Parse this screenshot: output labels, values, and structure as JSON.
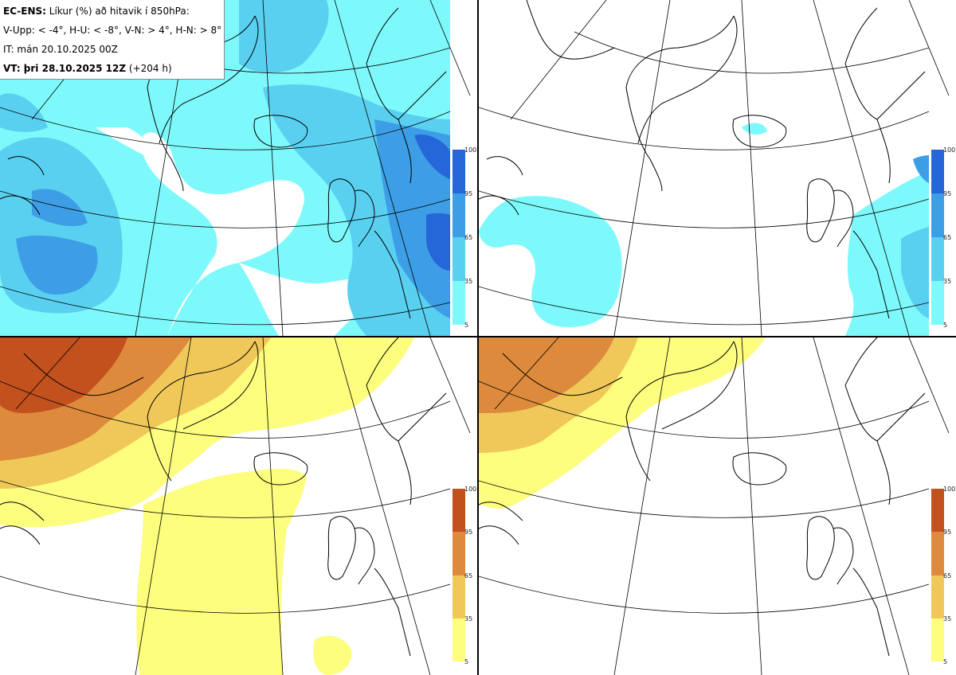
{
  "info": {
    "line1_bold": "EC-ENS:",
    "line1_rest": "Líkur (%) að hitavik í 850hPa:",
    "line2": "V-Upp: < -4°, H-U: < -8°, V-N: > 4°, H-N: > 8°",
    "line3": "IT: mán 20.10.2025 00Z",
    "line4_bold": "VT: þri 28.10.2025 12Z",
    "line4_rest": "(+204 h)"
  },
  "colorbar_labels": [
    "100",
    "95",
    "65",
    "35",
    "5"
  ],
  "palettes": {
    "cold": [
      "#7ef9fb",
      "#5ad0f0",
      "#3d9ee6",
      "#2566d8"
    ],
    "warm": [
      "#fdfd7e",
      "#f0c85a",
      "#dd8a3c",
      "#c2511e"
    ]
  },
  "panels": [
    {
      "id": "top-left",
      "label": "V-Upp",
      "scheme": "cold"
    },
    {
      "id": "top-right",
      "label": "H-U",
      "scheme": "cold"
    },
    {
      "id": "bottom-left",
      "label": "V-N",
      "scheme": "warm"
    },
    {
      "id": "bottom-right",
      "label": "H-N",
      "scheme": "warm"
    }
  ]
}
